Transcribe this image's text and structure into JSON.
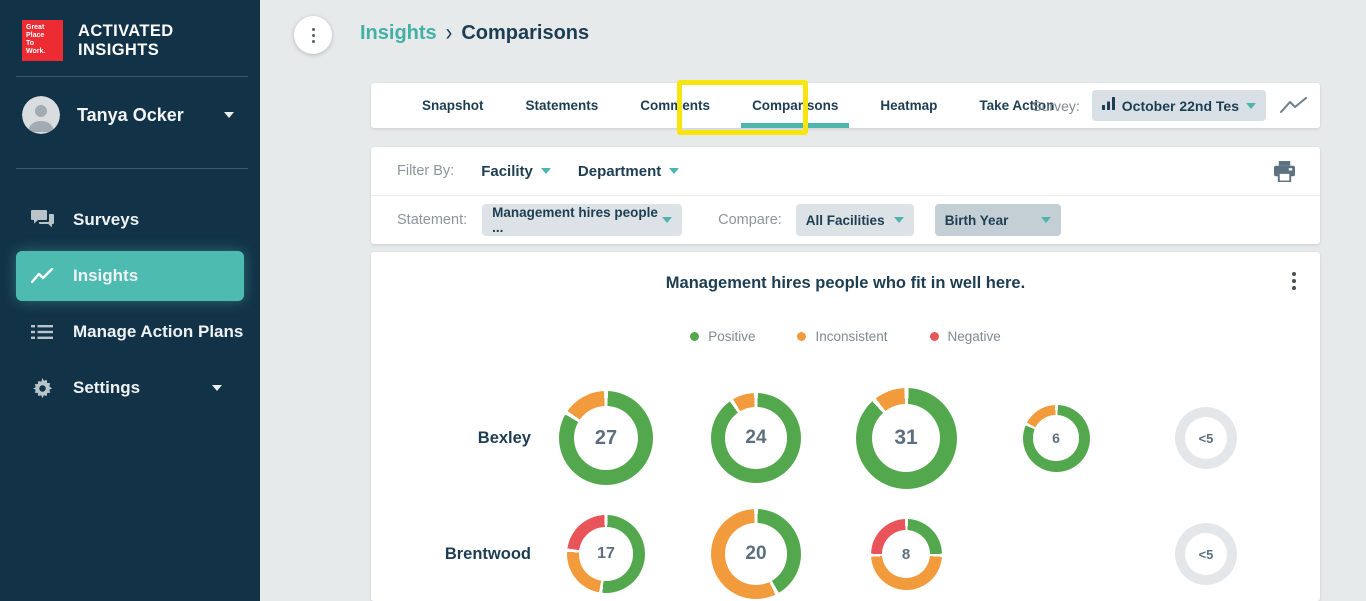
{
  "sidebar": {
    "logo": [
      "Great",
      "Place",
      "To",
      "Work."
    ],
    "brand": "ACTIVATED INSIGHTS",
    "user": {
      "name": "Tanya Ocker"
    },
    "items": [
      {
        "label": "Surveys",
        "icon": "chat-icon",
        "active": false
      },
      {
        "label": "Insights",
        "icon": "trend-icon",
        "active": true
      },
      {
        "label": "Manage Action Plans",
        "icon": "list-icon",
        "active": false
      },
      {
        "label": "Settings",
        "icon": "gear-icon",
        "active": false
      }
    ]
  },
  "breadcrumb": {
    "parent": "Insights",
    "separator": "›",
    "current": "Comparisons"
  },
  "tabs": {
    "items": [
      "Snapshot",
      "Statements",
      "Comments",
      "Comparisons",
      "Heatmap",
      "Take Action"
    ],
    "active": "Comparisons",
    "survey_label": "Survey:",
    "survey_value": "October 22nd Tes"
  },
  "filters": {
    "filter_by_label": "Filter By:",
    "facility": "Facility",
    "department": "Department",
    "statement_label": "Statement:",
    "statement_value": "Management hires people ...",
    "compare_label": "Compare:",
    "compare_value_1": "All Facilities",
    "compare_value_2": "Birth Year"
  },
  "chart_data": {
    "type": "donut-grid",
    "title": "Management hires people who fit in well here.",
    "legend": [
      {
        "label": "Positive",
        "color": "#53a84e"
      },
      {
        "label": "Inconsistent",
        "color": "#f19b3d"
      },
      {
        "label": "Negative",
        "color": "#e9545b"
      }
    ],
    "rows": [
      {
        "label": "Bexley",
        "donuts": [
          {
            "value": "27",
            "size": 94,
            "segments": [
              {
                "type": "positive",
                "pct": 85
              },
              {
                "type": "inconsistent",
                "pct": 15
              }
            ]
          },
          {
            "value": "24",
            "size": 90,
            "segments": [
              {
                "type": "positive",
                "pct": 92
              },
              {
                "type": "inconsistent",
                "pct": 8
              }
            ]
          },
          {
            "value": "31",
            "size": 101,
            "segments": [
              {
                "type": "positive",
                "pct": 90
              },
              {
                "type": "inconsistent",
                "pct": 10
              }
            ]
          },
          {
            "value": "6",
            "size": 67,
            "segments": [
              {
                "type": "positive",
                "pct": 83
              },
              {
                "type": "inconsistent",
                "pct": 17
              }
            ]
          },
          {
            "value": "<5",
            "size": 62,
            "segments": [
              {
                "type": "empty",
                "pct": 100
              }
            ]
          }
        ]
      },
      {
        "label": "Brentwood",
        "donuts": [
          {
            "value": "17",
            "size": 78,
            "segments": [
              {
                "type": "positive",
                "pct": 53
              },
              {
                "type": "inconsistent",
                "pct": 24
              },
              {
                "type": "negative",
                "pct": 23
              }
            ]
          },
          {
            "value": "20",
            "size": 90,
            "segments": [
              {
                "type": "positive",
                "pct": 42
              },
              {
                "type": "inconsistent",
                "pct": 58
              }
            ]
          },
          {
            "value": "8",
            "size": 71,
            "segments": [
              {
                "type": "positive",
                "pct": 25
              },
              {
                "type": "inconsistent",
                "pct": 50
              },
              {
                "type": "negative",
                "pct": 25
              }
            ]
          },
          null,
          {
            "value": "<5",
            "size": 62,
            "segments": [
              {
                "type": "empty",
                "pct": 100
              }
            ]
          }
        ]
      }
    ]
  },
  "colors": {
    "accent_teal": "#4db6ac",
    "sidebar_bg": "#123247",
    "positive": "#53a84e",
    "inconsistent": "#f19b3d",
    "negative": "#e9545b",
    "empty_ring": "#e4e7ea",
    "highlight_yellow": "#f6e60e",
    "dark_text": "#1d3d52"
  }
}
